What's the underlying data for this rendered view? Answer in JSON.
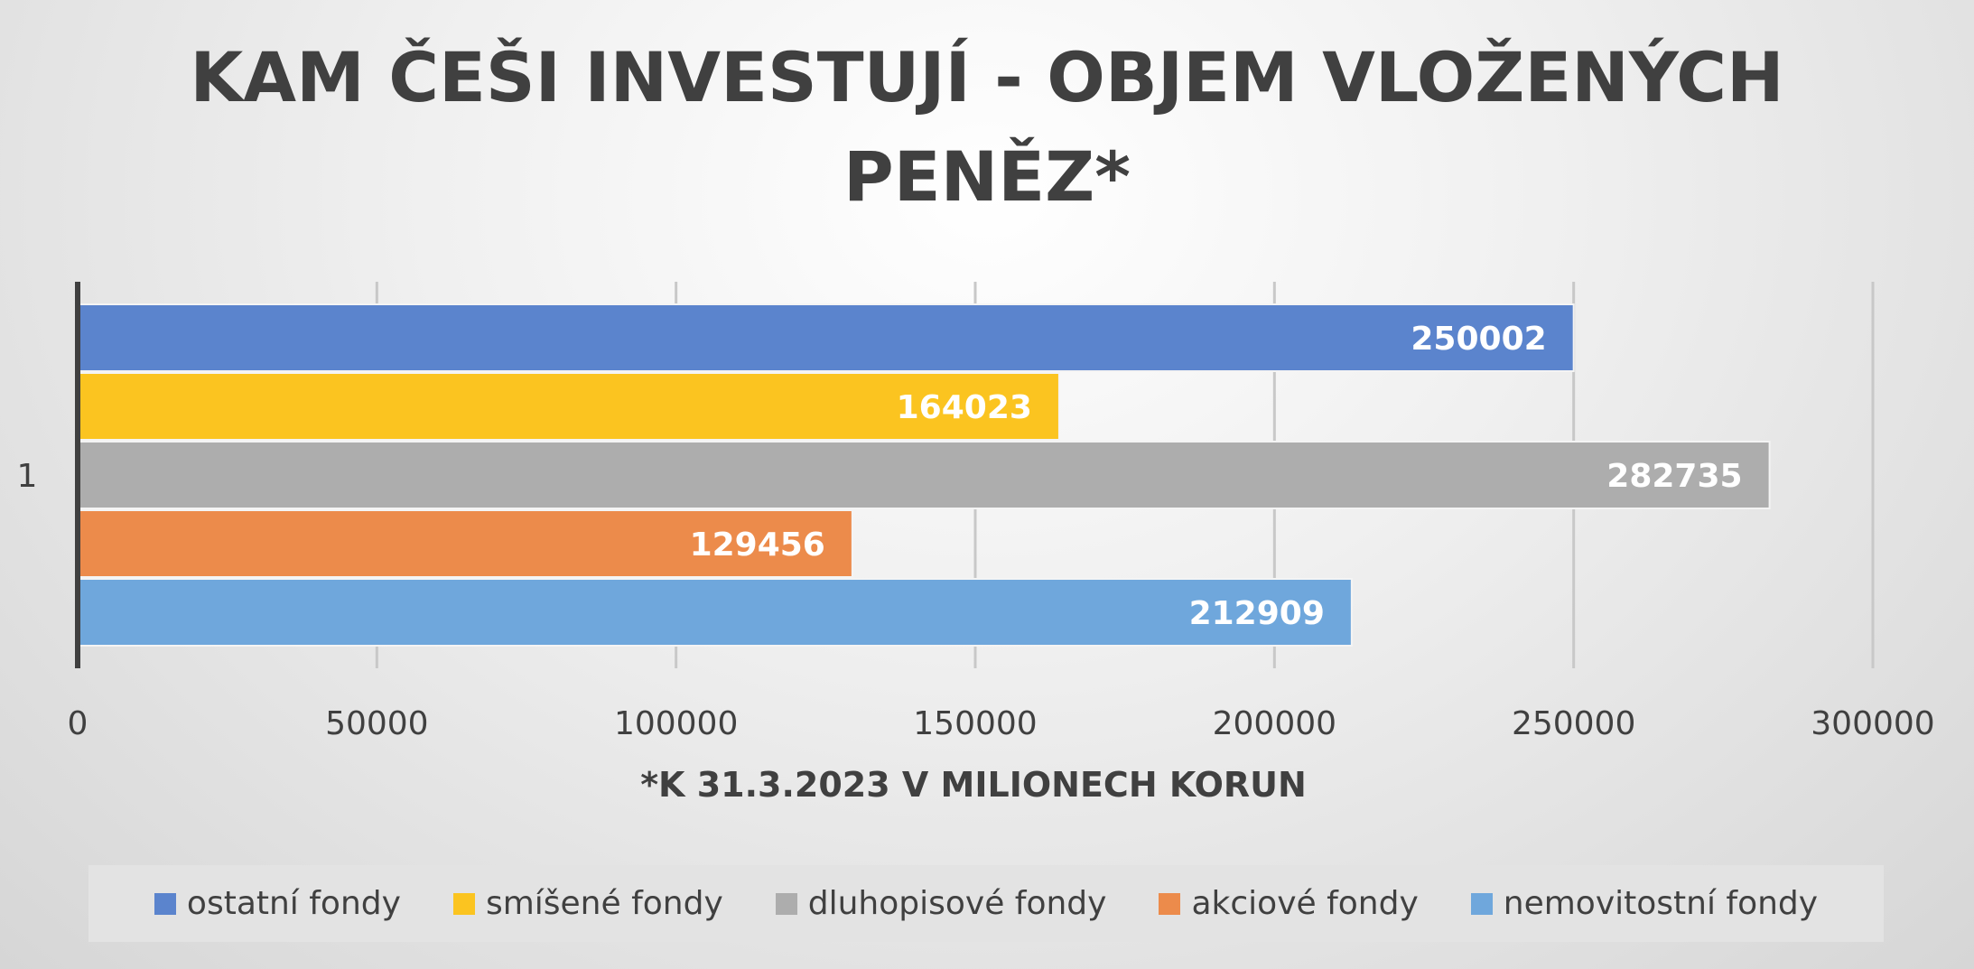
{
  "chart_data": {
    "type": "bar",
    "orientation": "horizontal",
    "title": "KAM ČEŠI INVESTUJÍ - OBJEM VLOŽENÝCH PENĚZ*",
    "title_lines": [
      "KAM ČEŠI INVESTUJÍ - OBJEM VLOŽENÝCH",
      "PENĚZ*"
    ],
    "xlabel": "*K 31.3.2023 V MILIONECH KORUN",
    "ylabel": "",
    "categories": [
      "1"
    ],
    "xlim": [
      0,
      300000
    ],
    "x_ticks": [
      "0",
      "50000",
      "100000",
      "150000",
      "200000",
      "250000",
      "300000"
    ],
    "grid": true,
    "legend_position": "bottom",
    "series": [
      {
        "name": "ostatní fondy",
        "values": [
          250002
        ],
        "color": "#5b84cd"
      },
      {
        "name": "smíšené fondy",
        "values": [
          164023
        ],
        "color": "#fbc420"
      },
      {
        "name": "dluhopisové fondy",
        "values": [
          282735
        ],
        "color": "#adadad"
      },
      {
        "name": "akciové fondy",
        "values": [
          129456
        ],
        "color": "#ec8b4b"
      },
      {
        "name": "nemovitostní fondy",
        "values": [
          212909
        ],
        "color": "#6fa7dc"
      }
    ],
    "data_labels": [
      "250002",
      "164023",
      "282735",
      "129456",
      "212909"
    ]
  }
}
